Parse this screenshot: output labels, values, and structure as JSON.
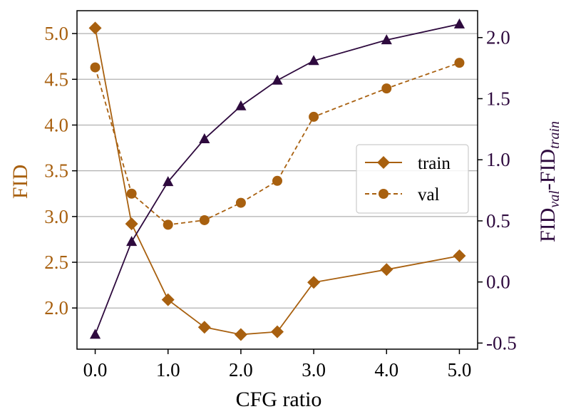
{
  "chart_data": {
    "type": "line",
    "x": [
      0.0,
      0.5,
      1.0,
      1.5,
      2.0,
      2.5,
      3.0,
      4.0,
      5.0
    ],
    "xlabel": "CFG ratio",
    "xlim": [
      -0.25,
      5.25
    ],
    "x_ticks": [
      "0.0",
      "1.0",
      "2.0",
      "3.0",
      "4.0",
      "5.0"
    ],
    "x_tick_values": [
      0,
      1,
      2,
      3,
      4,
      5
    ],
    "left_axis": {
      "label": "FID",
      "ylim": [
        1.55,
        5.25
      ],
      "ticks": [
        "2.0",
        "2.5",
        "3.0",
        "3.5",
        "4.0",
        "4.5",
        "5.0"
      ],
      "tick_values": [
        2.0,
        2.5,
        3.0,
        3.5,
        4.0,
        4.5,
        5.0
      ],
      "grid": true
    },
    "right_axis": {
      "label_main": "FID",
      "label_sub1": "val",
      "label_mid": "-FID",
      "label_sub2": "train",
      "ylim": [
        -0.55,
        2.22
      ],
      "ticks": [
        "-0.5",
        "0.0",
        "0.5",
        "1.0",
        "1.5",
        "2.0"
      ],
      "tick_values": [
        -0.5,
        0.0,
        0.5,
        1.0,
        1.5,
        2.0
      ]
    },
    "series": [
      {
        "name": "train",
        "axis": "left",
        "marker": "diamond",
        "style": "solid",
        "color": "#A8600F",
        "values": [
          5.06,
          2.92,
          2.09,
          1.79,
          1.71,
          1.74,
          2.28,
          2.42,
          2.57
        ]
      },
      {
        "name": "val",
        "axis": "left",
        "marker": "circle",
        "style": "dashed",
        "color": "#A8600F",
        "values": [
          4.63,
          3.25,
          2.91,
          2.96,
          3.15,
          3.39,
          4.09,
          4.4,
          4.68
        ]
      },
      {
        "name": "FID_val - FID_train",
        "axis": "right",
        "marker": "triangle",
        "style": "solid",
        "color": "#2E0A3E",
        "legend": false,
        "values": [
          -0.43,
          0.33,
          0.82,
          1.17,
          1.44,
          1.65,
          1.81,
          1.98,
          2.11
        ]
      }
    ],
    "legend": {
      "position": "center-right",
      "entries": [
        "train",
        "val"
      ]
    },
    "colors": {
      "left_axis": "#A8600F",
      "right_axis": "#2E0A3E",
      "grid": "#B0B0B0"
    }
  }
}
